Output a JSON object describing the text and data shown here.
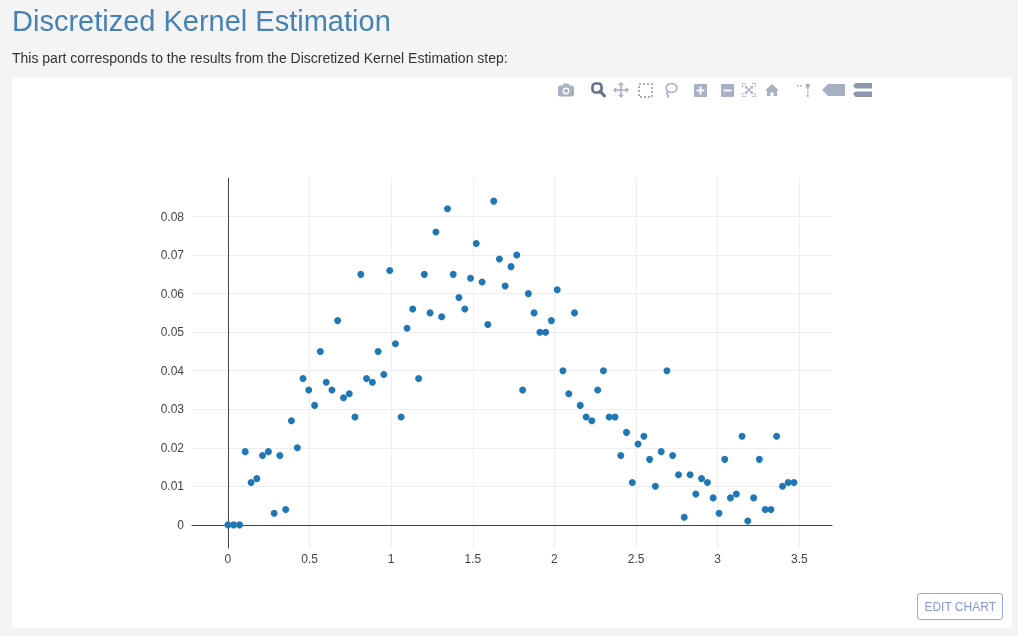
{
  "chart_data": {
    "type": "scatter",
    "title": "Discretized Kernel Estimation",
    "subtitle": "This part corresponds to the results from the Discretized Kernel Estimation step:",
    "annotations": [
      "EDIT CHART"
    ],
    "x": [
      0,
      0.035,
      0.071,
      0.106,
      0.142,
      0.177,
      0.212,
      0.248,
      0.283,
      0.318,
      0.354,
      0.389,
      0.425,
      0.46,
      0.495,
      0.531,
      0.566,
      0.602,
      0.637,
      0.672,
      0.708,
      0.743,
      0.778,
      0.814,
      0.849,
      0.885,
      0.92,
      0.955,
      0.991,
      1.026,
      1.061,
      1.097,
      1.132,
      1.168,
      1.203,
      1.238,
      1.274,
      1.309,
      1.345,
      1.38,
      1.415,
      1.451,
      1.486,
      1.521,
      1.557,
      1.592,
      1.628,
      1.663,
      1.698,
      1.734,
      1.769,
      1.805,
      1.84,
      1.875,
      1.911,
      1.946,
      1.981,
      2.017,
      2.052,
      2.088,
      2.123,
      2.158,
      2.194,
      2.229,
      2.265,
      2.3,
      2.335,
      2.371,
      2.406,
      2.441,
      2.477,
      2.512,
      2.548,
      2.583,
      2.618,
      2.654,
      2.689,
      2.724,
      2.76,
      2.795,
      2.831,
      2.866,
      2.901,
      2.937,
      2.972,
      3.008,
      3.043,
      3.078,
      3.114,
      3.149,
      3.184,
      3.22,
      3.255,
      3.291,
      3.326,
      3.361,
      3.397,
      3.432,
      3.467
    ],
    "values": [
      0,
      0,
      0,
      0.019,
      0.011,
      0.012,
      0.018,
      0.019,
      0.003,
      0.018,
      0.004,
      0.027,
      0.02,
      0.038,
      0.035,
      0.031,
      0.045,
      0.037,
      0.035,
      0.053,
      0.033,
      0.034,
      0.028,
      0.065,
      0.038,
      0.037,
      0.045,
      0.039,
      0.066,
      0.047,
      0.028,
      0.051,
      0.056,
      0.038,
      0.065,
      0.055,
      0.076,
      0.054,
      0.082,
      0.065,
      0.059,
      0.056,
      0.064,
      0.073,
      0.063,
      0.052,
      0.084,
      0.069,
      0.062,
      0.067,
      0.07,
      0.035,
      0.06,
      0.055,
      0.05,
      0.05,
      0.053,
      0.061,
      0.04,
      0.034,
      0.055,
      0.031,
      0.028,
      0.027,
      0.035,
      0.04,
      0.028,
      0.028,
      0.018,
      0.024,
      0.011,
      0.021,
      0.023,
      0.017,
      0.01,
      0.019,
      0.04,
      0.018,
      0.013,
      0.002,
      0.013,
      0.008,
      0.012,
      0.011,
      0.007,
      0.003,
      0.017,
      0.007,
      0.008,
      0.023,
      0.001,
      0.007,
      0.017,
      0.004,
      0.004,
      0.023,
      0.01,
      0.011,
      0.011
    ],
    "color": "#1f77b4",
    "marker": "circle",
    "xlim": [
      -0.22,
      3.7
    ],
    "ylim": [
      -0.006,
      0.09
    ],
    "xticks": [
      0,
      0.5,
      1,
      1.5,
      2,
      2.5,
      3,
      3.5
    ],
    "yticks": [
      0,
      0.01,
      0.02,
      0.03,
      0.04,
      0.05,
      0.06,
      0.07,
      0.08
    ],
    "grid": true
  }
}
